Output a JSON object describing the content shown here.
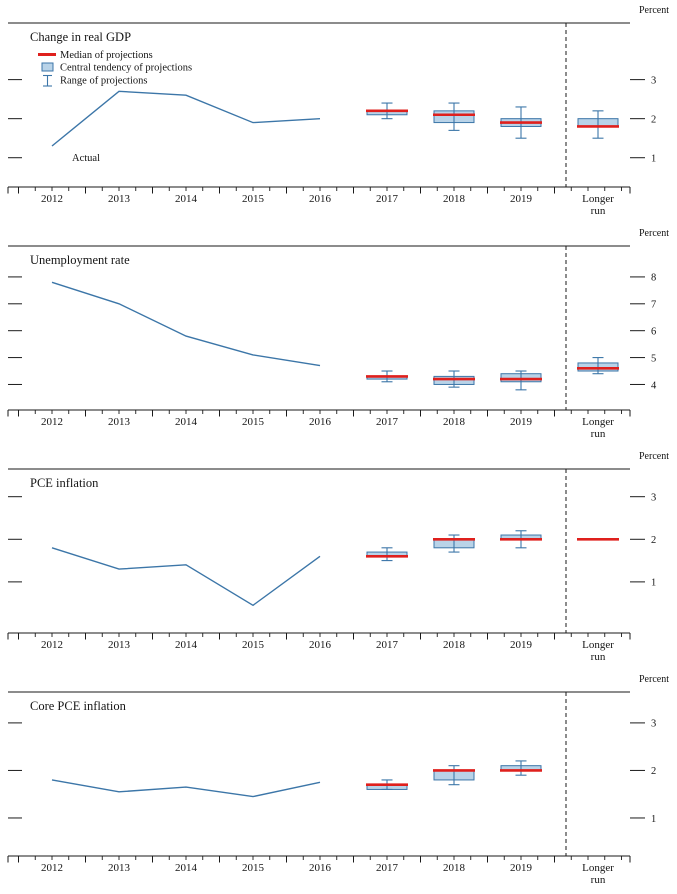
{
  "figure": {
    "x_axis_years": [
      "2012",
      "2013",
      "2014",
      "2015",
      "2016",
      "2017",
      "2018",
      "2019"
    ],
    "longer_run_label": [
      "Longer",
      "run"
    ],
    "unit_label": "Percent"
  },
  "legend": {
    "median": "Median of projections",
    "central_tendency": "Central tendency of projections",
    "range": "Range of projections"
  },
  "colors": {
    "actual_line": "#3c76a8",
    "box_fill": "#b9d3e8",
    "box_border": "#3c76a8",
    "median": "#df201d",
    "axis": "#1a1a1a"
  },
  "chart_data": [
    {
      "type": "line+boxwhisker",
      "title": "Change in real GDP",
      "unit_label": "Percent",
      "actual_label": "Actual",
      "show_legend": true,
      "x_actual": [
        2012,
        2013,
        2014,
        2015,
        2016
      ],
      "actual": [
        1.3,
        2.7,
        2.6,
        1.9,
        2.0
      ],
      "yticks": [
        1,
        2,
        3
      ],
      "ylim": [
        0.25,
        4.45
      ],
      "projections": [
        {
          "period": "2017",
          "median": 2.2,
          "central_tendency": [
            2.1,
            2.2
          ],
          "range": [
            2.0,
            2.4
          ]
        },
        {
          "period": "2018",
          "median": 2.1,
          "central_tendency": [
            1.9,
            2.2
          ],
          "range": [
            1.7,
            2.4
          ]
        },
        {
          "period": "2019",
          "median": 1.9,
          "central_tendency": [
            1.8,
            2.0
          ],
          "range": [
            1.5,
            2.3
          ]
        },
        {
          "period": "Longer run",
          "median": 1.8,
          "central_tendency": [
            1.8,
            2.0
          ],
          "range": [
            1.5,
            2.2
          ]
        }
      ]
    },
    {
      "type": "line+boxwhisker",
      "title": "Unemployment rate",
      "unit_label": "Percent",
      "x_actual": [
        2012,
        2013,
        2014,
        2015,
        2016
      ],
      "actual": [
        7.8,
        7.0,
        5.8,
        5.1,
        4.7
      ],
      "yticks": [
        4,
        5,
        6,
        7,
        8
      ],
      "ylim": [
        3.05,
        9.15
      ],
      "projections": [
        {
          "period": "2017",
          "median": 4.3,
          "central_tendency": [
            4.2,
            4.3
          ],
          "range": [
            4.1,
            4.5
          ]
        },
        {
          "period": "2018",
          "median": 4.2,
          "central_tendency": [
            4.0,
            4.3
          ],
          "range": [
            3.9,
            4.5
          ]
        },
        {
          "period": "2019",
          "median": 4.2,
          "central_tendency": [
            4.1,
            4.4
          ],
          "range": [
            3.8,
            4.5
          ]
        },
        {
          "period": "Longer run",
          "median": 4.6,
          "central_tendency": [
            4.5,
            4.8
          ],
          "range": [
            4.4,
            5.0
          ]
        }
      ]
    },
    {
      "type": "line+boxwhisker",
      "title": "PCE inflation",
      "unit_label": "Percent",
      "x_actual": [
        2012,
        2013,
        2014,
        2015,
        2016
      ],
      "actual": [
        1.8,
        1.3,
        1.4,
        0.45,
        1.6
      ],
      "yticks": [
        1,
        2,
        3
      ],
      "ylim": [
        -0.2,
        3.65
      ],
      "projections": [
        {
          "period": "2017",
          "median": 1.6,
          "central_tendency": [
            1.6,
            1.7
          ],
          "range": [
            1.5,
            1.8
          ]
        },
        {
          "period": "2018",
          "median": 2.0,
          "central_tendency": [
            1.8,
            2.0
          ],
          "range": [
            1.7,
            2.1
          ]
        },
        {
          "period": "2019",
          "median": 2.0,
          "central_tendency": [
            2.0,
            2.1
          ],
          "range": [
            1.8,
            2.2
          ]
        },
        {
          "period": "Longer run",
          "median": 2.0
        }
      ]
    },
    {
      "type": "line+boxwhisker",
      "title": "Core PCE inflation",
      "unit_label": "Percent",
      "x_actual": [
        2012,
        2013,
        2014,
        2015,
        2016
      ],
      "actual": [
        1.8,
        1.55,
        1.65,
        1.45,
        1.75
      ],
      "yticks": [
        1,
        2,
        3
      ],
      "ylim": [
        0.2,
        3.65
      ],
      "projections": [
        {
          "period": "2017",
          "median": 1.7,
          "central_tendency": [
            1.6,
            1.7
          ],
          "range": [
            1.6,
            1.8
          ]
        },
        {
          "period": "2018",
          "median": 2.0,
          "central_tendency": [
            1.8,
            2.0
          ],
          "range": [
            1.7,
            2.1
          ]
        },
        {
          "period": "2019",
          "median": 2.0,
          "central_tendency": [
            2.0,
            2.1
          ],
          "range": [
            1.9,
            2.2
          ]
        }
      ]
    }
  ]
}
